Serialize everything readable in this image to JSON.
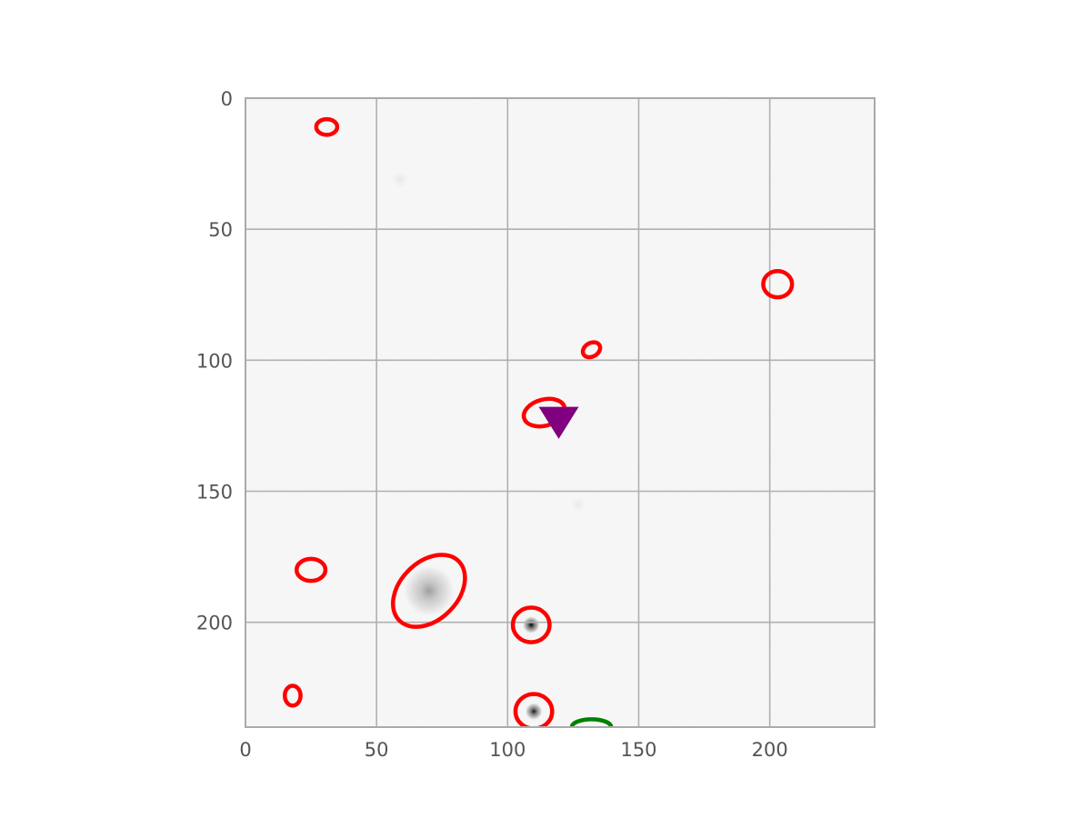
{
  "chart_data": {
    "type": "scatter",
    "title": "",
    "xlabel": "",
    "ylabel": "",
    "xlim": [
      0,
      240
    ],
    "ylim": [
      240,
      0
    ],
    "y_inverted": true,
    "grid": true,
    "legend": "none",
    "background": "grayscale image",
    "x_ticks": [
      "0",
      "50",
      "100",
      "150",
      "200"
    ],
    "y_ticks": [
      "0",
      "50",
      "100",
      "150",
      "200"
    ],
    "x_tick_values": [
      0,
      50,
      100,
      150,
      200
    ],
    "y_tick_values": [
      0,
      50,
      100,
      150,
      200
    ],
    "sources": [
      {
        "x": 70,
        "y": 188,
        "brightness": 0.35,
        "spread": 6
      },
      {
        "x": 109,
        "y": 201,
        "brightness": 1.0,
        "spread": 2
      },
      {
        "x": 110,
        "y": 234,
        "brightness": 0.9,
        "spread": 2
      },
      {
        "x": 59,
        "y": 31,
        "brightness": 0.06,
        "spread": 2
      },
      {
        "x": 127,
        "y": 155,
        "brightness": 0.05,
        "spread": 2
      }
    ],
    "series": [
      {
        "marker": "ellipse",
        "color": "#ff0000",
        "points": [
          {
            "x": 31,
            "y": 11,
            "rx": 4,
            "ry": 3,
            "angle": 0
          },
          {
            "x": 203,
            "y": 71,
            "rx": 5.5,
            "ry": 5,
            "angle": 0
          },
          {
            "x": 132,
            "y": 96,
            "rx": 3.5,
            "ry": 2.6,
            "angle": -30
          },
          {
            "x": 114,
            "y": 120,
            "rx": 8,
            "ry": 5,
            "angle": -15
          },
          {
            "x": 25,
            "y": 180,
            "rx": 5.5,
            "ry": 4.2,
            "angle": 0
          },
          {
            "x": 70,
            "y": 188,
            "rx": 16,
            "ry": 11,
            "angle": -45
          },
          {
            "x": 109,
            "y": 201,
            "rx": 7,
            "ry": 6.6,
            "angle": 0
          },
          {
            "x": 18,
            "y": 228,
            "rx": 3,
            "ry": 3.8,
            "angle": 0
          },
          {
            "x": 110,
            "y": 234,
            "rx": 7,
            "ry": 6.6,
            "angle": 0
          }
        ]
      },
      {
        "marker": "ellipse",
        "color": "#008000",
        "points": [
          {
            "x": 132,
            "y": 240,
            "rx": 7.5,
            "ry": 3,
            "angle": 0
          }
        ]
      },
      {
        "marker": "triangle-down",
        "color": "#800080",
        "points": [
          {
            "x": 119.5,
            "y": 122
          }
        ]
      }
    ]
  }
}
